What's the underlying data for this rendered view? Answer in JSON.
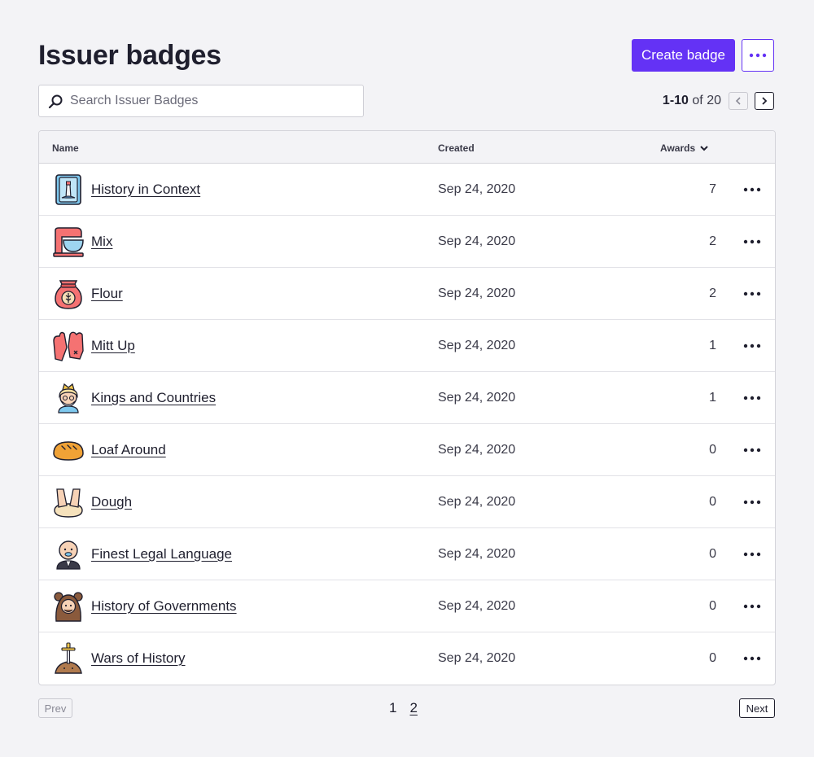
{
  "header": {
    "title": "Issuer badges",
    "create_label": "Create badge",
    "accent_color": "#6432f5"
  },
  "search": {
    "placeholder": "Search Issuer Badges",
    "value": "",
    "icon": "search-icon"
  },
  "pagination_top": {
    "range": "1-10",
    "of_text": "of 20"
  },
  "table": {
    "columns": {
      "name": "Name",
      "created": "Created",
      "awards": "Awards"
    },
    "sort_column": "awards",
    "rows": [
      {
        "name": "History in Context",
        "created": "Sep 24, 2020",
        "awards": "7",
        "icon": "lighthouse-book-icon"
      },
      {
        "name": "Mix",
        "created": "Sep 24, 2020",
        "awards": "2",
        "icon": "stand-mixer-icon"
      },
      {
        "name": "Flour",
        "created": "Sep 24, 2020",
        "awards": "2",
        "icon": "flour-sack-icon"
      },
      {
        "name": "Mitt Up",
        "created": "Sep 24, 2020",
        "awards": "1",
        "icon": "oven-mitts-icon"
      },
      {
        "name": "Kings and Countries",
        "created": "Sep 24, 2020",
        "awards": "1",
        "icon": "king-icon"
      },
      {
        "name": "Loaf Around",
        "created": "Sep 24, 2020",
        "awards": "0",
        "icon": "bread-loaf-icon"
      },
      {
        "name": "Dough",
        "created": "Sep 24, 2020",
        "awards": "0",
        "icon": "kneading-dough-icon"
      },
      {
        "name": "Finest Legal Language",
        "created": "Sep 24, 2020",
        "awards": "0",
        "icon": "bald-man-icon"
      },
      {
        "name": "History of Governments",
        "created": "Sep 24, 2020",
        "awards": "0",
        "icon": "bear-costume-icon"
      },
      {
        "name": "Wars of History",
        "created": "Sep 24, 2020",
        "awards": "0",
        "icon": "sword-in-stone-icon"
      }
    ]
  },
  "pagination_bottom": {
    "prev_label": "Prev",
    "next_label": "Next",
    "pages": [
      "1",
      "2"
    ],
    "current_page": "1"
  }
}
